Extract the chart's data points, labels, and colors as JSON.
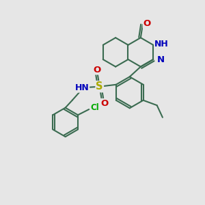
{
  "bg_color": "#e6e6e6",
  "bond_color": "#3a6b50",
  "bond_width": 1.5,
  "heteroatom_colors": {
    "O": "#cc0000",
    "N": "#0000bb",
    "S": "#aaaa00",
    "Cl": "#00aa00",
    "H": "#666666"
  },
  "font_size": 8.5,
  "figsize": [
    3.0,
    3.0
  ],
  "dpi": 100
}
